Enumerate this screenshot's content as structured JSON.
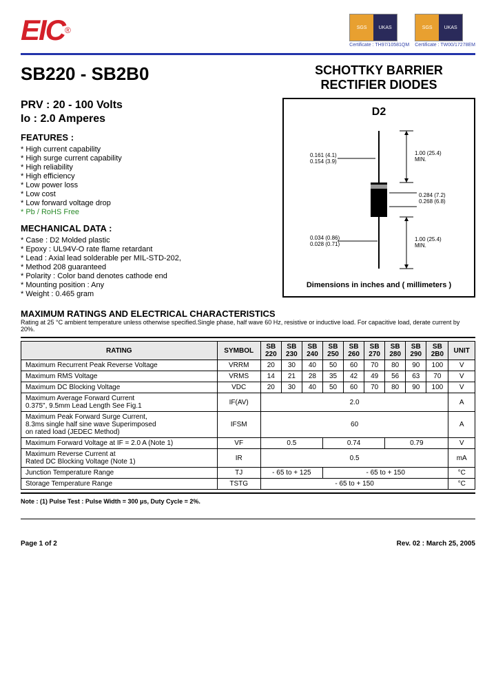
{
  "logo": {
    "text": "EIC",
    "reg": "®"
  },
  "certs": [
    {
      "left": "SGS",
      "right": "UKAS",
      "label": "Certificate : TH97/10581QM"
    },
    {
      "left": "SGS",
      "right": "UKAS",
      "label": "Certificate : TW00/17278EM"
    }
  ],
  "partNumber": "SB220 - SB2B0",
  "mainTitle": "SCHOTTKY BARRIER RECTIFIER DIODES",
  "prv": "PRV :  20 - 100 Volts",
  "io": "Io :   2.0 Amperes",
  "featuresHead": "FEATURES :",
  "features": [
    "High current capability",
    "High surge current capability",
    "High reliability",
    "High efficiency",
    "Low power loss",
    "Low cost",
    "Low forward voltage drop"
  ],
  "featureGreen": "Pb / RoHS Free",
  "mechHead": "MECHANICAL  DATA :",
  "mech": [
    "Case : D2  Molded plastic",
    "Epoxy : UL94V-O rate flame retardant",
    "Lead : Axial lead solderable per MIL-STD-202,",
    "            Method 208 guaranteed",
    "Polarity : Color band denotes cathode end",
    "Mounting  position : Any",
    "Weight : 0.465  gram"
  ],
  "diagram": {
    "title": "D2",
    "caption": "Dimensions in inches and ( millimeters )",
    "dims": {
      "leadDia1": "0.161 (4.1)",
      "leadDia2": "0.154 (3.9)",
      "leadLen": "1.00 (25.4) MIN.",
      "bodyW1": "0.284 (7.2)",
      "bodyW2": "0.268 (6.8)",
      "wire1": "0.034 (0.86)",
      "wire2": "0.028 (0.71)"
    }
  },
  "ratingsHead": "MAXIMUM RATINGS  AND  ELECTRICAL  CHARACTERISTICS",
  "ratingsNote": "Rating at 25 °C ambient temperature unless otherwise specified.Single phase, half wave 60 Hz, resistive or inductive load. For capacitive load, derate current by 20%.",
  "table": {
    "headers": [
      "RATING",
      "SYMBOL",
      "SB 220",
      "SB 230",
      "SB 240",
      "SB 250",
      "SB 260",
      "SB 270",
      "SB 280",
      "SB 290",
      "SB 2B0",
      "UNIT"
    ],
    "rows": [
      {
        "label": "Maximum Recurrent Peak Reverse Voltage",
        "sym": "VRRM",
        "vals": [
          "20",
          "30",
          "40",
          "50",
          "60",
          "70",
          "80",
          "90",
          "100"
        ],
        "unit": "V"
      },
      {
        "label": "Maximum RMS Voltage",
        "sym": "VRMS",
        "vals": [
          "14",
          "21",
          "28",
          "35",
          "42",
          "49",
          "56",
          "63",
          "70"
        ],
        "unit": "V"
      },
      {
        "label": "Maximum DC Blocking Voltage",
        "sym": "VDC",
        "vals": [
          "20",
          "30",
          "40",
          "50",
          "60",
          "70",
          "80",
          "90",
          "100"
        ],
        "unit": "V"
      },
      {
        "label": "Maximum Average Forward Current\n0.375\", 9.5mm Lead Length See Fig.1",
        "sym": "IF(AV)",
        "span": "2.0",
        "unit": "A"
      },
      {
        "label": "Maximum Peak Forward Surge Current,\n8.3ms single half sine wave Superimposed\non rated load (JEDEC Method)",
        "sym": "IFSM",
        "span": "60",
        "unit": "A"
      },
      {
        "label": "Maximum Forward Voltage at IF = 2.0 A (Note 1)",
        "sym": "VF",
        "groups": [
          "0.5",
          "0.74",
          "0.79"
        ],
        "unit": "V"
      },
      {
        "label": "Maximum Reverse Current at\nRated DC Blocking Voltage (Note 1)",
        "sym": "IR",
        "span": "0.5",
        "unit": "mA"
      },
      {
        "label": "Junction Temperature Range",
        "sym": "TJ",
        "groups2": [
          "- 65 to + 125",
          "- 65 to + 150"
        ],
        "unit": "°C"
      },
      {
        "label": "Storage Temperature Range",
        "sym": "TSTG",
        "span": "- 65 to + 150",
        "unit": "°C"
      }
    ]
  },
  "note": "Note : (1) Pulse Test :  Pulse Width = 300 μs, Duty Cycle = 2%.",
  "footer": {
    "page": "Page 1 of 2",
    "rev": "Rev. 02 : March 25, 2005"
  }
}
